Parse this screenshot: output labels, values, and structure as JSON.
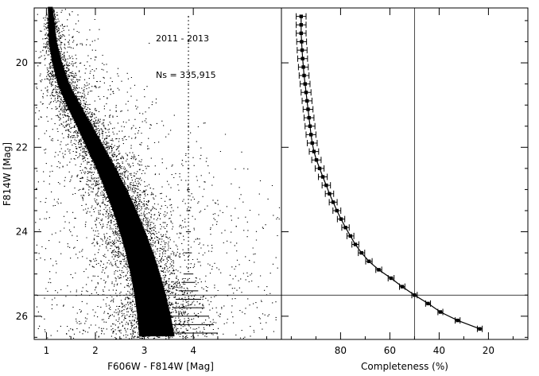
{
  "figure": {
    "annotation_years": "2011 - 2013",
    "annotation_ns": "Ns = 335,915"
  },
  "chart_data": [
    {
      "type": "scatter",
      "title": "",
      "xlabel": "F606W - F814W [Mag]",
      "ylabel": "F814W [Mag]",
      "xlim": [
        0.75,
        5.8
      ],
      "ylim": [
        26.55,
        18.7
      ],
      "y_inverted": true,
      "xticks": [
        1,
        2,
        3,
        4
      ],
      "yticks": [
        20,
        22,
        24,
        26
      ],
      "grid": false,
      "reference_line_y": 25.5,
      "main_sequence_ridge": {
        "y": [
          18.7,
          19.5,
          20.0,
          20.5,
          21.0,
          21.5,
          22.0,
          22.5,
          23.0,
          23.5,
          24.0,
          24.5,
          25.0,
          25.5,
          26.0,
          26.5
        ],
        "x": [
          1.08,
          1.13,
          1.22,
          1.35,
          1.55,
          1.78,
          2.0,
          2.22,
          2.42,
          2.6,
          2.76,
          2.9,
          3.02,
          3.12,
          3.2,
          3.26
        ]
      },
      "color_error_bars": {
        "x_center": 3.9,
        "mag": [
          18.9,
          19.5,
          20.0,
          20.5,
          21.0,
          21.5,
          22.0,
          22.5,
          23.0,
          23.5,
          24.0,
          24.5,
          25.0,
          25.2,
          25.4,
          25.6,
          25.8,
          26.0,
          26.2,
          26.4
        ],
        "half_width": [
          0.01,
          0.01,
          0.01,
          0.01,
          0.01,
          0.015,
          0.02,
          0.02,
          0.03,
          0.04,
          0.05,
          0.07,
          0.1,
          0.14,
          0.2,
          0.26,
          0.33,
          0.42,
          0.52,
          0.6
        ]
      },
      "n_stars": 335915
    },
    {
      "type": "line",
      "title": "",
      "xlabel": "Completeness (%)",
      "ylabel": "",
      "xlim": [
        104,
        4
      ],
      "ylim": [
        26.55,
        18.7
      ],
      "x_inverted": true,
      "y_inverted": true,
      "xticks": [
        80,
        60,
        40,
        20
      ],
      "grid": false,
      "reference_line_x": 50,
      "reference_line_y": 25.5,
      "series": [
        {
          "mag": [
            18.9,
            19.1,
            19.3,
            19.5,
            19.7,
            19.9,
            20.1,
            20.3,
            20.5,
            20.7,
            20.9,
            21.1,
            21.3,
            21.5,
            21.7,
            21.9,
            22.1,
            22.3,
            22.5,
            22.7,
            22.9,
            23.1,
            23.3,
            23.5,
            23.7,
            23.9,
            24.1,
            24.3,
            24.5,
            24.7,
            24.9,
            25.1,
            25.3,
            25.5,
            25.7,
            25.9,
            26.1,
            26.3
          ],
          "completeness": [
            96,
            96,
            96,
            95.8,
            95.6,
            95.4,
            95.1,
            94.8,
            94.4,
            94,
            93.6,
            93.2,
            92.8,
            92.4,
            92,
            91.5,
            90.8,
            89.8,
            88.5,
            87.2,
            85.8,
            84.5,
            83,
            81.5,
            79.8,
            78,
            76,
            74,
            71.5,
            68.5,
            64.5,
            59.5,
            55,
            50,
            44.5,
            39.5,
            32.5,
            23.5
          ],
          "error": [
            2,
            2,
            2,
            2,
            2,
            2,
            2,
            2,
            2,
            2,
            2,
            2,
            2,
            2,
            2,
            2,
            1.9,
            1.9,
            1.8,
            1.8,
            1.7,
            1.7,
            1.6,
            1.6,
            1.5,
            1.5,
            1.4,
            1.4,
            1.3,
            1.3,
            1.2,
            1.2,
            1.1,
            1.1,
            1.0,
            1.0,
            1.0,
            1.0
          ]
        }
      ]
    }
  ]
}
